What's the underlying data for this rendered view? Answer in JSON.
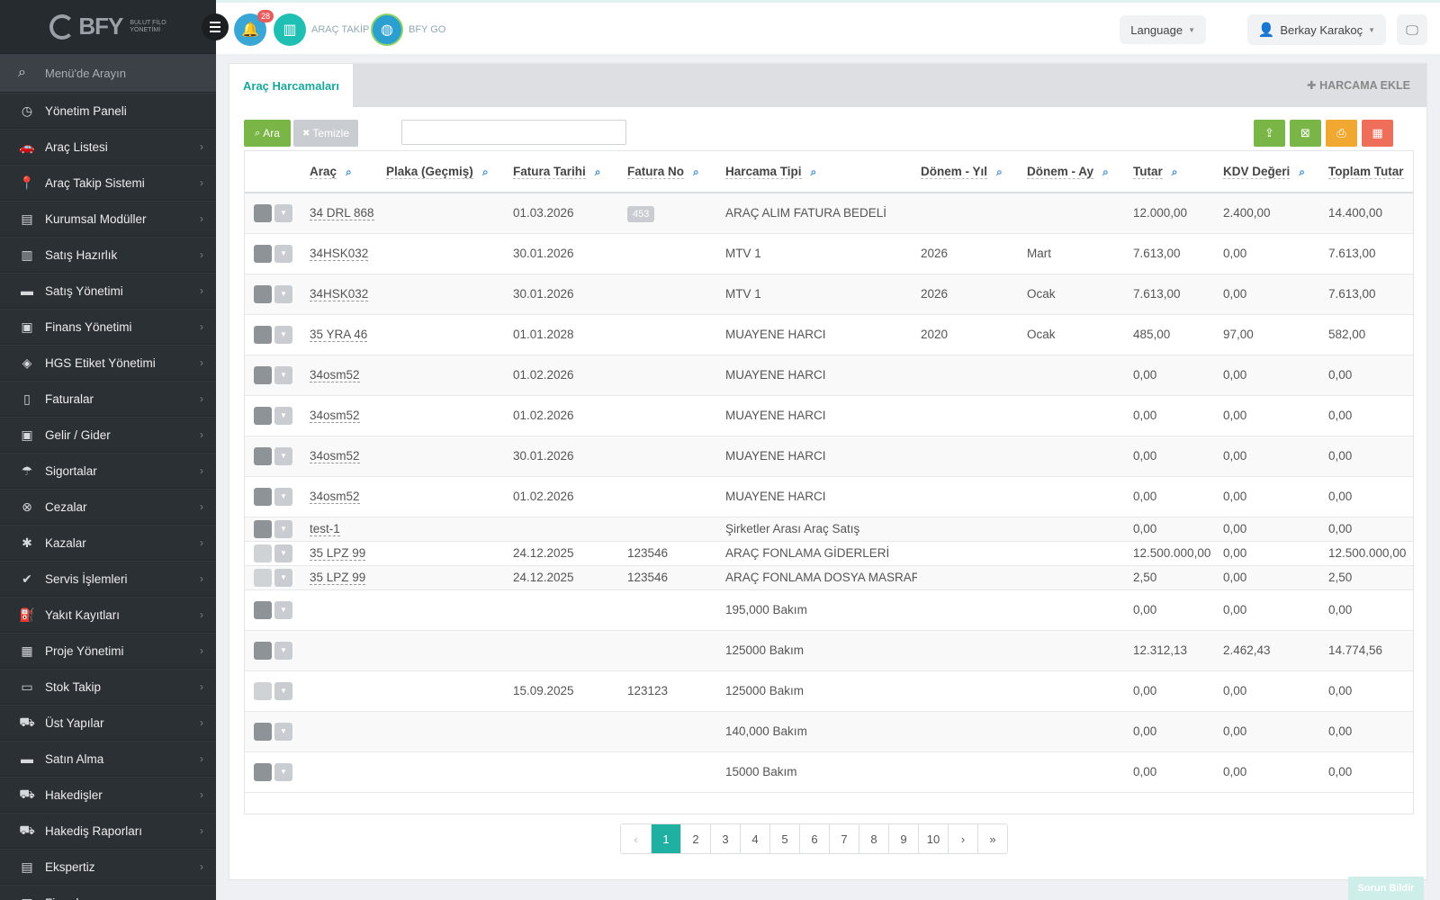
{
  "app": {
    "logo_text": "BFY",
    "logo_sub_1": "BULUT FİLO",
    "logo_sub_2": "YÖNETİMİ"
  },
  "sidebar": {
    "search_placeholder": "Menü'de Arayın",
    "items": [
      {
        "label": "Yönetim Paneli",
        "icon": "dashboard-icon",
        "glyph": "◷",
        "chevron": false
      },
      {
        "label": "Araç Listesi",
        "icon": "car-icon",
        "glyph": "🚗",
        "chevron": true
      },
      {
        "label": "Araç Takip Sistemi",
        "icon": "map-marker-icon",
        "glyph": "📍",
        "chevron": true
      },
      {
        "label": "Kurumsal Modüller",
        "icon": "server-icon",
        "glyph": "▤",
        "chevron": true
      },
      {
        "label": "Satış Hazırlık",
        "icon": "book-icon",
        "glyph": "▥",
        "chevron": true
      },
      {
        "label": "Satış Yönetimi",
        "icon": "credit-card-icon",
        "glyph": "▬",
        "chevron": true
      },
      {
        "label": "Finans Yönetimi",
        "icon": "money-icon",
        "glyph": "▣",
        "chevron": true
      },
      {
        "label": "HGS Etiket Yönetimi",
        "icon": "tag-icon",
        "glyph": "◈",
        "chevron": true
      },
      {
        "label": "Faturalar",
        "icon": "file-icon",
        "glyph": "▯",
        "chevron": true
      },
      {
        "label": "Gelir / Gider",
        "icon": "money-bill-icon",
        "glyph": "▣",
        "chevron": true
      },
      {
        "label": "Sigortalar",
        "icon": "umbrella-icon",
        "glyph": "☂",
        "chevron": true
      },
      {
        "label": "Cezalar",
        "icon": "times-circle-icon",
        "glyph": "⊗",
        "chevron": true
      },
      {
        "label": "Kazalar",
        "icon": "car-crash-icon",
        "glyph": "✱",
        "chevron": true
      },
      {
        "label": "Servis İşlemleri",
        "icon": "check-circle-icon",
        "glyph": "✔",
        "chevron": true
      },
      {
        "label": "Yakıt Kayıtları",
        "icon": "gas-pump-icon",
        "glyph": "⛽",
        "chevron": true
      },
      {
        "label": "Proje Yönetimi",
        "icon": "briefcase-icon",
        "glyph": "▦",
        "chevron": true
      },
      {
        "label": "Stok Takip",
        "icon": "inbox-icon",
        "glyph": "▭",
        "chevron": true
      },
      {
        "label": "Üst Yapılar",
        "icon": "truck-icon",
        "glyph": "⛟",
        "chevron": true
      },
      {
        "label": "Satın Alma",
        "icon": "credit-card-icon",
        "glyph": "▬",
        "chevron": true
      },
      {
        "label": "Hakedişler",
        "icon": "truck-icon",
        "glyph": "⛟",
        "chevron": true
      },
      {
        "label": "Hakediş Raporları",
        "icon": "truck-icon",
        "glyph": "⛟",
        "chevron": true
      },
      {
        "label": "Ekspertiz",
        "icon": "list-icon",
        "glyph": "▤",
        "chevron": true
      },
      {
        "label": "Firmalar",
        "icon": "building-icon",
        "glyph": "▦",
        "chevron": true
      }
    ]
  },
  "topbar": {
    "notification_count": "28",
    "arac_takip_label": "ARAÇ TAKİP",
    "bfy_go_label": "BFY GO",
    "language_label": "Language",
    "user_name": "Berkay Karakoç"
  },
  "panel": {
    "tab_label": "Araç Harcamaları",
    "add_button_label": "HARCAMA EKLE",
    "search_button_label": "Ara",
    "clear_button_label": "Temizle",
    "filter_placeholder": ""
  },
  "table": {
    "columns": [
      "Araç",
      "Plaka (Geçmiş)",
      "Fatura Tarihi",
      "Fatura No",
      "Harcama Tipi",
      "Dönem - Yıl",
      "Dönem - Ay",
      "Tutar",
      "KDV Değeri",
      "Toplam Tutar"
    ],
    "rows": [
      {
        "arac": "34 DRL 868",
        "plaka": "",
        "tarih": "01.03.2026",
        "fno": "453",
        "fno_badge": true,
        "tip": "ARAÇ ALIM FATURA BEDELİ",
        "yil": "",
        "ay": "",
        "tutar": "12.000,00",
        "kdv": "2.400,00",
        "toplam": "14.400,00",
        "light": false,
        "h": 45
      },
      {
        "arac": "34HSK032",
        "plaka": "",
        "tarih": "30.01.2026",
        "fno": "",
        "fno_badge": false,
        "tip": "MTV 1",
        "yil": "2026",
        "ay": "Mart",
        "tutar": "7.613,00",
        "kdv": "0,00",
        "toplam": "7.613,00",
        "light": false,
        "h": 45
      },
      {
        "arac": "34HSK032",
        "plaka": "",
        "tarih": "30.01.2026",
        "fno": "",
        "fno_badge": false,
        "tip": "MTV 1",
        "yil": "2026",
        "ay": "Ocak",
        "tutar": "7.613,00",
        "kdv": "0,00",
        "toplam": "7.613,00",
        "light": false,
        "h": 45
      },
      {
        "arac": "35 YRA 46",
        "plaka": "",
        "tarih": "01.01.2028",
        "fno": "",
        "fno_badge": false,
        "tip": "MUAYENE HARCI",
        "yil": "2020",
        "ay": "Ocak",
        "tutar": "485,00",
        "kdv": "97,00",
        "toplam": "582,00",
        "light": false,
        "h": 45
      },
      {
        "arac": "34osm52",
        "plaka": "",
        "tarih": "01.02.2026",
        "fno": "",
        "fno_badge": false,
        "tip": "MUAYENE HARCI",
        "yil": "",
        "ay": "",
        "tutar": "0,00",
        "kdv": "0,00",
        "toplam": "0,00",
        "light": false,
        "h": 45
      },
      {
        "arac": "34osm52",
        "plaka": "",
        "tarih": "01.02.2026",
        "fno": "",
        "fno_badge": false,
        "tip": "MUAYENE HARCI",
        "yil": "",
        "ay": "",
        "tutar": "0,00",
        "kdv": "0,00",
        "toplam": "0,00",
        "light": false,
        "h": 45
      },
      {
        "arac": "34osm52",
        "plaka": "",
        "tarih": "30.01.2026",
        "fno": "",
        "fno_badge": false,
        "tip": "MUAYENE HARCI",
        "yil": "",
        "ay": "",
        "tutar": "0,00",
        "kdv": "0,00",
        "toplam": "0,00",
        "light": false,
        "h": 45
      },
      {
        "arac": "34osm52",
        "plaka": "",
        "tarih": "01.02.2026",
        "fno": "",
        "fno_badge": false,
        "tip": "MUAYENE HARCI",
        "yil": "",
        "ay": "",
        "tutar": "0,00",
        "kdv": "0,00",
        "toplam": "0,00",
        "light": false,
        "h": 45
      },
      {
        "arac": "test-1",
        "plaka": "",
        "tarih": "",
        "fno": "",
        "fno_badge": false,
        "tip": "Şirketler Arası Araç Satış",
        "yil": "",
        "ay": "",
        "tutar": "0,00",
        "kdv": "0,00",
        "toplam": "0,00",
        "light": false,
        "h": 27
      },
      {
        "arac": "35 LPZ 99",
        "plaka": "",
        "tarih": "24.12.2025",
        "fno": "123546",
        "fno_badge": false,
        "tip": "ARAÇ FONLAMA GİDERLERİ",
        "yil": "",
        "ay": "",
        "tutar": "12.500.000,00",
        "kdv": "0,00",
        "toplam": "12.500.000,00",
        "light": true,
        "h": 27
      },
      {
        "arac": "35 LPZ 99",
        "plaka": "",
        "tarih": "24.12.2025",
        "fno": "123546",
        "fno_badge": false,
        "tip": "ARAÇ FONLAMA DOSYA MASRAFI",
        "yil": "",
        "ay": "",
        "tutar": "2,50",
        "kdv": "0,00",
        "toplam": "2,50",
        "light": true,
        "h": 27
      },
      {
        "arac": "",
        "plaka": "",
        "tarih": "",
        "fno": "",
        "fno_badge": false,
        "tip": "195,000 Bakım",
        "yil": "",
        "ay": "",
        "tutar": "0,00",
        "kdv": "0,00",
        "toplam": "0,00",
        "light": false,
        "h": 45
      },
      {
        "arac": "",
        "plaka": "",
        "tarih": "",
        "fno": "",
        "fno_badge": false,
        "tip": "125000 Bakım",
        "yil": "",
        "ay": "",
        "tutar": "12.312,13",
        "kdv": "2.462,43",
        "toplam": "14.774,56",
        "light": false,
        "h": 45
      },
      {
        "arac": "",
        "plaka": "",
        "tarih": "15.09.2025",
        "fno": "123123",
        "fno_badge": false,
        "tip": "125000 Bakım",
        "yil": "",
        "ay": "",
        "tutar": "0,00",
        "kdv": "0,00",
        "toplam": "0,00",
        "light": true,
        "h": 45
      },
      {
        "arac": "",
        "plaka": "",
        "tarih": "",
        "fno": "",
        "fno_badge": false,
        "tip": "140,000 Bakım",
        "yil": "",
        "ay": "",
        "tutar": "0,00",
        "kdv": "0,00",
        "toplam": "0,00",
        "light": false,
        "h": 45
      },
      {
        "arac": "",
        "plaka": "",
        "tarih": "",
        "fno": "",
        "fno_badge": false,
        "tip": "15000 Bakım",
        "yil": "",
        "ay": "",
        "tutar": "0,00",
        "kdv": "0,00",
        "toplam": "0,00",
        "light": false,
        "h": 45
      }
    ]
  },
  "pagination": {
    "prev": "‹",
    "pages": [
      "1",
      "2",
      "3",
      "4",
      "5",
      "6",
      "7",
      "8",
      "9",
      "10"
    ],
    "active": "1",
    "next": "›",
    "last": "»"
  },
  "footer": {
    "report_button": "Sorun Bildir"
  },
  "colors": {
    "accent": "#1fb0a2",
    "sidebar_bg": "#2b3035",
    "green": "#7ab647",
    "orange": "#f0a830",
    "red": "#ee6e5a"
  }
}
